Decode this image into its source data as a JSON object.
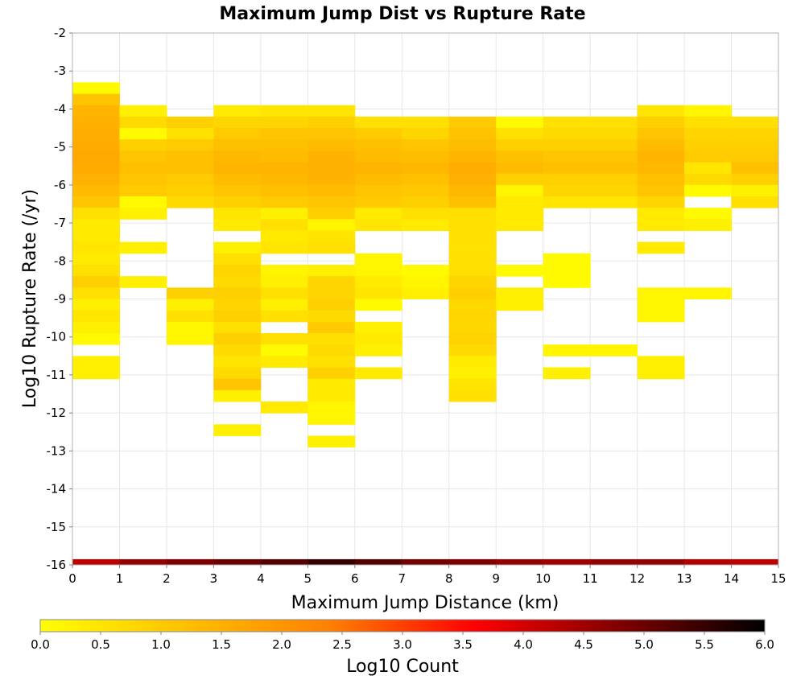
{
  "chart_data": {
    "type": "heatmap",
    "title": "Maximum Jump Dist vs Rupture Rate",
    "xlabel": "Maximum Jump Distance (km)",
    "ylabel": "Log10 Rupture Rate (/yr)",
    "xlim": [
      0,
      15
    ],
    "ylim": [
      -16,
      -2
    ],
    "x_ticks": [
      "0",
      "1",
      "2",
      "3",
      "4",
      "5",
      "6",
      "7",
      "8",
      "9",
      "10",
      "11",
      "12",
      "13",
      "14",
      "15"
    ],
    "y_ticks": [
      "-2",
      "-3",
      "-4",
      "-5",
      "-6",
      "-7",
      "-8",
      "-9",
      "-10",
      "-11",
      "-12",
      "-13",
      "-14",
      "-15",
      "-16"
    ],
    "grid": true,
    "cell_height": 0.3,
    "colorbar": {
      "label": "Log10 Count",
      "min": 0.0,
      "max": 6.0,
      "ticks": [
        "0.0",
        "0.5",
        "1.0",
        "1.5",
        "2.0",
        "2.5",
        "3.0",
        "3.5",
        "4.0",
        "4.5",
        "5.0",
        "5.5",
        "6.0"
      ],
      "colors": [
        "#ffff00",
        "#ffc000",
        "#ff8000",
        "#ff0000",
        "#800000",
        "#000000"
      ]
    },
    "columns": [
      {
        "x": 0,
        "cells": [
          {
            "y": -3.3,
            "v": 0.1
          },
          {
            "y": -3.6,
            "v": 1.1
          },
          {
            "y": -3.9,
            "v": 1.4
          },
          {
            "y": -4.2,
            "v": 1.5
          },
          {
            "y": -4.5,
            "v": 1.55
          },
          {
            "y": -4.8,
            "v": 1.6
          },
          {
            "y": -5.1,
            "v": 1.65
          },
          {
            "y": -5.4,
            "v": 1.6
          },
          {
            "y": -5.7,
            "v": 1.5
          },
          {
            "y": -6.0,
            "v": 1.3
          },
          {
            "y": -6.3,
            "v": 1.1
          },
          {
            "y": -6.6,
            "v": 0.6
          },
          {
            "y": -6.9,
            "v": 0.4
          },
          {
            "y": -7.2,
            "v": 0.4
          },
          {
            "y": -7.5,
            "v": 0.5
          },
          {
            "y": -7.8,
            "v": 0.4
          },
          {
            "y": -8.1,
            "v": 0.6
          },
          {
            "y": -8.4,
            "v": 0.9
          },
          {
            "y": -8.7,
            "v": 0.6
          },
          {
            "y": -9.0,
            "v": 0.3
          },
          {
            "y": -9.3,
            "v": 0.5
          },
          {
            "y": -9.6,
            "v": 0.3
          },
          {
            "y": -9.9,
            "v": 0.1
          },
          {
            "y": -10.5,
            "v": 0.3
          },
          {
            "y": -10.8,
            "v": 0.3
          }
        ]
      },
      {
        "x": 1,
        "cells": [
          {
            "y": -3.9,
            "v": 0.3
          },
          {
            "y": -4.2,
            "v": 0.7
          },
          {
            "y": -4.5,
            "v": 0.1
          },
          {
            "y": -4.8,
            "v": 0.9
          },
          {
            "y": -5.1,
            "v": 1.1
          },
          {
            "y": -5.4,
            "v": 1.2
          },
          {
            "y": -5.7,
            "v": 1.1
          },
          {
            "y": -6.0,
            "v": 1.0
          },
          {
            "y": -6.3,
            "v": 0.1
          },
          {
            "y": -6.6,
            "v": 0.3
          },
          {
            "y": -7.5,
            "v": 0.3
          },
          {
            "y": -8.4,
            "v": 0.3
          }
        ]
      },
      {
        "x": 2,
        "cells": [
          {
            "y": -4.2,
            "v": 0.9
          },
          {
            "y": -4.5,
            "v": 0.6
          },
          {
            "y": -4.8,
            "v": 1.0
          },
          {
            "y": -5.1,
            "v": 1.2
          },
          {
            "y": -5.4,
            "v": 1.2
          },
          {
            "y": -5.7,
            "v": 1.0
          },
          {
            "y": -6.0,
            "v": 0.9
          },
          {
            "y": -6.3,
            "v": 0.7
          },
          {
            "y": -8.7,
            "v": 0.9
          },
          {
            "y": -9.0,
            "v": 0.3
          },
          {
            "y": -9.3,
            "v": 0.6
          },
          {
            "y": -9.6,
            "v": 0.2
          },
          {
            "y": -9.9,
            "v": 0.2
          }
        ]
      },
      {
        "x": 3,
        "cells": [
          {
            "y": -3.9,
            "v": 0.4
          },
          {
            "y": -4.2,
            "v": 0.8
          },
          {
            "y": -4.5,
            "v": 1.0
          },
          {
            "y": -4.8,
            "v": 1.2
          },
          {
            "y": -5.1,
            "v": 1.35
          },
          {
            "y": -5.4,
            "v": 1.4
          },
          {
            "y": -5.7,
            "v": 1.3
          },
          {
            "y": -6.0,
            "v": 1.1
          },
          {
            "y": -6.3,
            "v": 0.9
          },
          {
            "y": -6.6,
            "v": 0.5
          },
          {
            "y": -6.9,
            "v": 0.4
          },
          {
            "y": -7.5,
            "v": 0.3
          },
          {
            "y": -7.8,
            "v": 0.6
          },
          {
            "y": -8.1,
            "v": 0.8
          },
          {
            "y": -8.4,
            "v": 0.7
          },
          {
            "y": -8.7,
            "v": 0.9
          },
          {
            "y": -9.0,
            "v": 0.8
          },
          {
            "y": -9.3,
            "v": 0.9
          },
          {
            "y": -9.6,
            "v": 0.6
          },
          {
            "y": -9.9,
            "v": 0.9
          },
          {
            "y": -10.2,
            "v": 0.7
          },
          {
            "y": -10.5,
            "v": 0.5
          },
          {
            "y": -10.8,
            "v": 0.7
          },
          {
            "y": -11.1,
            "v": 1.1
          },
          {
            "y": -11.4,
            "v": 0.3
          },
          {
            "y": -12.3,
            "v": 0.3
          }
        ]
      },
      {
        "x": 4,
        "cells": [
          {
            "y": -3.9,
            "v": 0.5
          },
          {
            "y": -4.2,
            "v": 0.8
          },
          {
            "y": -4.5,
            "v": 1.1
          },
          {
            "y": -4.8,
            "v": 1.2
          },
          {
            "y": -5.1,
            "v": 1.3
          },
          {
            "y": -5.4,
            "v": 1.4
          },
          {
            "y": -5.7,
            "v": 1.35
          },
          {
            "y": -6.0,
            "v": 1.2
          },
          {
            "y": -6.3,
            "v": 1.0
          },
          {
            "y": -6.6,
            "v": 0.3
          },
          {
            "y": -6.9,
            "v": 0.6
          },
          {
            "y": -7.2,
            "v": 0.4
          },
          {
            "y": -7.5,
            "v": 0.5
          },
          {
            "y": -8.1,
            "v": 0.2
          },
          {
            "y": -8.4,
            "v": 0.3
          },
          {
            "y": -8.7,
            "v": 0.6
          },
          {
            "y": -9.0,
            "v": 0.3
          },
          {
            "y": -9.3,
            "v": 0.6
          },
          {
            "y": -9.9,
            "v": 0.6
          },
          {
            "y": -10.2,
            "v": 0.1
          },
          {
            "y": -10.5,
            "v": 0.4
          },
          {
            "y": -11.7,
            "v": 0.4
          }
        ]
      },
      {
        "x": 5,
        "cells": [
          {
            "y": -3.9,
            "v": 0.5
          },
          {
            "y": -4.2,
            "v": 0.9
          },
          {
            "y": -4.5,
            "v": 1.1
          },
          {
            "y": -4.8,
            "v": 1.3
          },
          {
            "y": -5.1,
            "v": 1.45
          },
          {
            "y": -5.4,
            "v": 1.5
          },
          {
            "y": -5.7,
            "v": 1.45
          },
          {
            "y": -6.0,
            "v": 1.3
          },
          {
            "y": -6.3,
            "v": 1.1
          },
          {
            "y": -6.6,
            "v": 0.9
          },
          {
            "y": -6.9,
            "v": 0.2
          },
          {
            "y": -7.2,
            "v": 0.5
          },
          {
            "y": -7.5,
            "v": 0.6
          },
          {
            "y": -8.1,
            "v": 0.3
          },
          {
            "y": -8.4,
            "v": 0.8
          },
          {
            "y": -8.7,
            "v": 0.8
          },
          {
            "y": -9.0,
            "v": 0.9
          },
          {
            "y": -9.3,
            "v": 0.7
          },
          {
            "y": -9.6,
            "v": 1.0
          },
          {
            "y": -9.9,
            "v": 0.6
          },
          {
            "y": -10.2,
            "v": 0.7
          },
          {
            "y": -10.5,
            "v": 0.6
          },
          {
            "y": -10.8,
            "v": 0.9
          },
          {
            "y": -11.1,
            "v": 0.4
          },
          {
            "y": -11.4,
            "v": 0.4
          },
          {
            "y": -11.7,
            "v": 0.2
          },
          {
            "y": -12.0,
            "v": 0.2
          },
          {
            "y": -12.6,
            "v": 0.3
          }
        ]
      },
      {
        "x": 6,
        "cells": [
          {
            "y": -4.2,
            "v": 0.6
          },
          {
            "y": -4.5,
            "v": 1.0
          },
          {
            "y": -4.8,
            "v": 1.2
          },
          {
            "y": -5.1,
            "v": 1.3
          },
          {
            "y": -5.4,
            "v": 1.4
          },
          {
            "y": -5.7,
            "v": 1.3
          },
          {
            "y": -6.0,
            "v": 1.1
          },
          {
            "y": -6.3,
            "v": 1.0
          },
          {
            "y": -6.6,
            "v": 0.4
          },
          {
            "y": -6.9,
            "v": 0.5
          },
          {
            "y": -7.8,
            "v": 0.2
          },
          {
            "y": -8.1,
            "v": 0.2
          },
          {
            "y": -8.4,
            "v": 0.4
          },
          {
            "y": -8.7,
            "v": 0.5
          },
          {
            "y": -9.0,
            "v": 0.1
          },
          {
            "y": -9.6,
            "v": 0.3
          },
          {
            "y": -9.9,
            "v": 0.4
          },
          {
            "y": -10.2,
            "v": 0.3
          },
          {
            "y": -10.8,
            "v": 0.4
          }
        ]
      },
      {
        "x": 7,
        "cells": [
          {
            "y": -4.2,
            "v": 0.6
          },
          {
            "y": -4.5,
            "v": 0.8
          },
          {
            "y": -4.8,
            "v": 1.1
          },
          {
            "y": -5.1,
            "v": 1.25
          },
          {
            "y": -5.4,
            "v": 1.35
          },
          {
            "y": -5.7,
            "v": 1.2
          },
          {
            "y": -6.0,
            "v": 1.05
          },
          {
            "y": -6.3,
            "v": 0.9
          },
          {
            "y": -6.6,
            "v": 0.6
          },
          {
            "y": -6.9,
            "v": 0.4
          },
          {
            "y": -8.1,
            "v": 0.1
          },
          {
            "y": -8.4,
            "v": 0.2
          },
          {
            "y": -8.7,
            "v": 0.3
          }
        ]
      },
      {
        "x": 8,
        "cells": [
          {
            "y": -4.2,
            "v": 1.0
          },
          {
            "y": -4.5,
            "v": 1.15
          },
          {
            "y": -4.8,
            "v": 1.25
          },
          {
            "y": -5.1,
            "v": 1.4
          },
          {
            "y": -5.4,
            "v": 1.55
          },
          {
            "y": -5.7,
            "v": 1.5
          },
          {
            "y": -6.0,
            "v": 1.35
          },
          {
            "y": -6.3,
            "v": 1.2
          },
          {
            "y": -6.6,
            "v": 0.6
          },
          {
            "y": -6.9,
            "v": 0.6
          },
          {
            "y": -7.2,
            "v": 0.6
          },
          {
            "y": -7.5,
            "v": 0.55
          },
          {
            "y": -7.8,
            "v": 0.6
          },
          {
            "y": -8.1,
            "v": 0.6
          },
          {
            "y": -8.4,
            "v": 0.8
          },
          {
            "y": -8.7,
            "v": 0.9
          },
          {
            "y": -9.0,
            "v": 0.75
          },
          {
            "y": -9.3,
            "v": 0.8
          },
          {
            "y": -9.6,
            "v": 0.75
          },
          {
            "y": -9.9,
            "v": 0.85
          },
          {
            "y": -10.2,
            "v": 0.7
          },
          {
            "y": -10.5,
            "v": 0.4
          },
          {
            "y": -10.8,
            "v": 0.3
          },
          {
            "y": -11.1,
            "v": 0.5
          },
          {
            "y": -11.4,
            "v": 0.6
          }
        ]
      },
      {
        "x": 9,
        "cells": [
          {
            "y": -4.2,
            "v": 0.1
          },
          {
            "y": -4.5,
            "v": 0.6
          },
          {
            "y": -4.8,
            "v": 0.9
          },
          {
            "y": -5.1,
            "v": 1.2
          },
          {
            "y": -5.4,
            "v": 1.3
          },
          {
            "y": -5.7,
            "v": 0.9
          },
          {
            "y": -6.0,
            "v": 0.2
          },
          {
            "y": -6.3,
            "v": 0.4
          },
          {
            "y": -6.6,
            "v": 0.4
          },
          {
            "y": -6.9,
            "v": 0.4
          },
          {
            "y": -8.1,
            "v": 0.1
          },
          {
            "y": -8.7,
            "v": 0.3
          },
          {
            "y": -9.0,
            "v": 0.3
          }
        ]
      },
      {
        "x": 10,
        "cells": [
          {
            "y": -4.2,
            "v": 0.6
          },
          {
            "y": -4.5,
            "v": 0.7
          },
          {
            "y": -4.8,
            "v": 0.9
          },
          {
            "y": -5.1,
            "v": 1.1
          },
          {
            "y": -5.4,
            "v": 1.2
          },
          {
            "y": -5.7,
            "v": 0.9
          },
          {
            "y": -6.0,
            "v": 0.8
          },
          {
            "y": -6.3,
            "v": 0.5
          },
          {
            "y": -7.8,
            "v": 0.1
          },
          {
            "y": -8.1,
            "v": 0.1
          },
          {
            "y": -8.4,
            "v": 0.1
          },
          {
            "y": -10.2,
            "v": 0.2
          },
          {
            "y": -10.8,
            "v": 0.3
          }
        ]
      },
      {
        "x": 11,
        "cells": [
          {
            "y": -4.2,
            "v": 0.6
          },
          {
            "y": -4.5,
            "v": 0.7
          },
          {
            "y": -4.8,
            "v": 0.9
          },
          {
            "y": -5.1,
            "v": 1.1
          },
          {
            "y": -5.4,
            "v": 1.2
          },
          {
            "y": -5.7,
            "v": 0.9
          },
          {
            "y": -6.0,
            "v": 0.8
          },
          {
            "y": -6.3,
            "v": 0.5
          },
          {
            "y": -10.2,
            "v": 0.2
          }
        ]
      },
      {
        "x": 12,
        "cells": [
          {
            "y": -3.9,
            "v": 0.5
          },
          {
            "y": -4.2,
            "v": 0.9
          },
          {
            "y": -4.5,
            "v": 1.1
          },
          {
            "y": -4.8,
            "v": 1.3
          },
          {
            "y": -5.1,
            "v": 1.4
          },
          {
            "y": -5.4,
            "v": 1.35
          },
          {
            "y": -5.7,
            "v": 1.2
          },
          {
            "y": -6.0,
            "v": 1.1
          },
          {
            "y": -6.3,
            "v": 0.8
          },
          {
            "y": -6.6,
            "v": 0.4
          },
          {
            "y": -6.9,
            "v": 0.4
          },
          {
            "y": -7.5,
            "v": 0.4
          },
          {
            "y": -8.7,
            "v": 0.2
          },
          {
            "y": -9.0,
            "v": 0.2
          },
          {
            "y": -9.3,
            "v": 0.2
          },
          {
            "y": -10.5,
            "v": 0.3
          },
          {
            "y": -10.8,
            "v": 0.3
          }
        ]
      },
      {
        "x": 13,
        "cells": [
          {
            "y": -3.9,
            "v": 0.2
          },
          {
            "y": -4.2,
            "v": 0.6
          },
          {
            "y": -4.5,
            "v": 0.8
          },
          {
            "y": -4.8,
            "v": 0.9
          },
          {
            "y": -5.1,
            "v": 1.0
          },
          {
            "y": -5.4,
            "v": 0.5
          },
          {
            "y": -5.7,
            "v": 0.7
          },
          {
            "y": -6.0,
            "v": 0.1
          },
          {
            "y": -6.6,
            "v": 0.1
          },
          {
            "y": -6.9,
            "v": 0.3
          },
          {
            "y": -8.7,
            "v": 0.2
          }
        ]
      },
      {
        "x": 14,
        "cells": [
          {
            "y": -4.2,
            "v": 0.6
          },
          {
            "y": -4.5,
            "v": 0.8
          },
          {
            "y": -4.8,
            "v": 0.9
          },
          {
            "y": -5.1,
            "v": 1.0
          },
          {
            "y": -5.4,
            "v": 1.2
          },
          {
            "y": -5.7,
            "v": 0.9
          },
          {
            "y": -6.0,
            "v": 0.3
          },
          {
            "y": -6.3,
            "v": 0.6
          }
        ]
      }
    ],
    "bottom_band": {
      "y": -16.0,
      "values": [
        4.2,
        4.6,
        4.8,
        5.0,
        5.2,
        5.5,
        5.2,
        4.9,
        4.8,
        4.6,
        4.5,
        4.6,
        4.6,
        4.3,
        4.2
      ]
    }
  }
}
